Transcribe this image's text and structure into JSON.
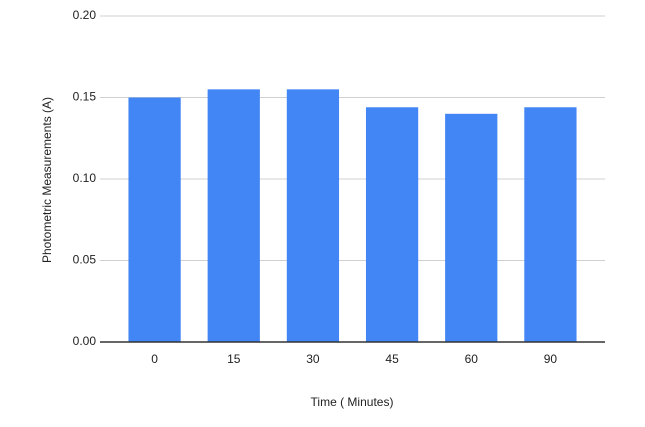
{
  "chart_data": {
    "type": "bar",
    "x_label": "Time ( Minutes)",
    "y_label": "Photometric Measurements (A)",
    "categories": [
      "0",
      "15",
      "30",
      "45",
      "60",
      "90"
    ],
    "values": [
      0.15,
      0.155,
      0.155,
      0.144,
      0.14,
      0.144
    ],
    "color": "#4285f4",
    "ylim": [
      0,
      0.2
    ],
    "yticks": [
      {
        "value": 0,
        "label": "0.00"
      },
      {
        "value": 0.05,
        "label": "0.05"
      },
      {
        "value": 0.1,
        "label": "0.10"
      },
      {
        "value": 0.15,
        "label": "0.15"
      },
      {
        "value": 0.2,
        "label": "0.20"
      }
    ],
    "grid": true
  }
}
